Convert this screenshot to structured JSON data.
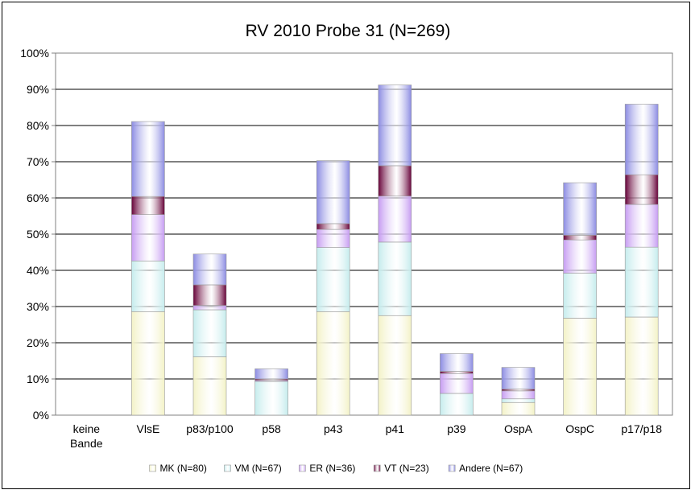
{
  "chart_data": {
    "type": "bar",
    "stacked": true,
    "title": "RV 2010 Probe 31 (N=269)",
    "categories": [
      "keine\nBande",
      "VlsE",
      "p83/p100",
      "p58",
      "p43",
      "p41",
      "p39",
      "OspA",
      "OspC",
      "p17/p18"
    ],
    "ylim": [
      0,
      1
    ],
    "yticks": [
      "0%",
      "10%",
      "20%",
      "30%",
      "40%",
      "50%",
      "60%",
      "70%",
      "80%",
      "90%",
      "100%"
    ],
    "grid": true,
    "legend_position": "bottom",
    "series": [
      {
        "name": "MK (N=80)",
        "color": "#f3f2c6",
        "values": [
          0,
          0.286,
          0.161,
          0.0,
          0.286,
          0.275,
          0.0,
          0.035,
          0.268,
          0.271
        ]
      },
      {
        "name": "VM (N=67)",
        "color": "#c5eced",
        "values": [
          0,
          0.14,
          0.13,
          0.093,
          0.177,
          0.203,
          0.06,
          0.01,
          0.124,
          0.193
        ]
      },
      {
        "name": "ER (N=36)",
        "color": "#c69cf2",
        "values": [
          0,
          0.128,
          0.012,
          0.003,
          0.05,
          0.127,
          0.055,
          0.022,
          0.092,
          0.118
        ]
      },
      {
        "name": "VT (N=23)",
        "color": "#650037",
        "values": [
          0,
          0.05,
          0.057,
          0.004,
          0.016,
          0.084,
          0.006,
          0.005,
          0.013,
          0.082
        ]
      },
      {
        "name": "Andere (N=67)",
        "color": "#8b8be2",
        "values": [
          0,
          0.207,
          0.085,
          0.028,
          0.174,
          0.223,
          0.049,
          0.06,
          0.145,
          0.195
        ]
      }
    ]
  }
}
